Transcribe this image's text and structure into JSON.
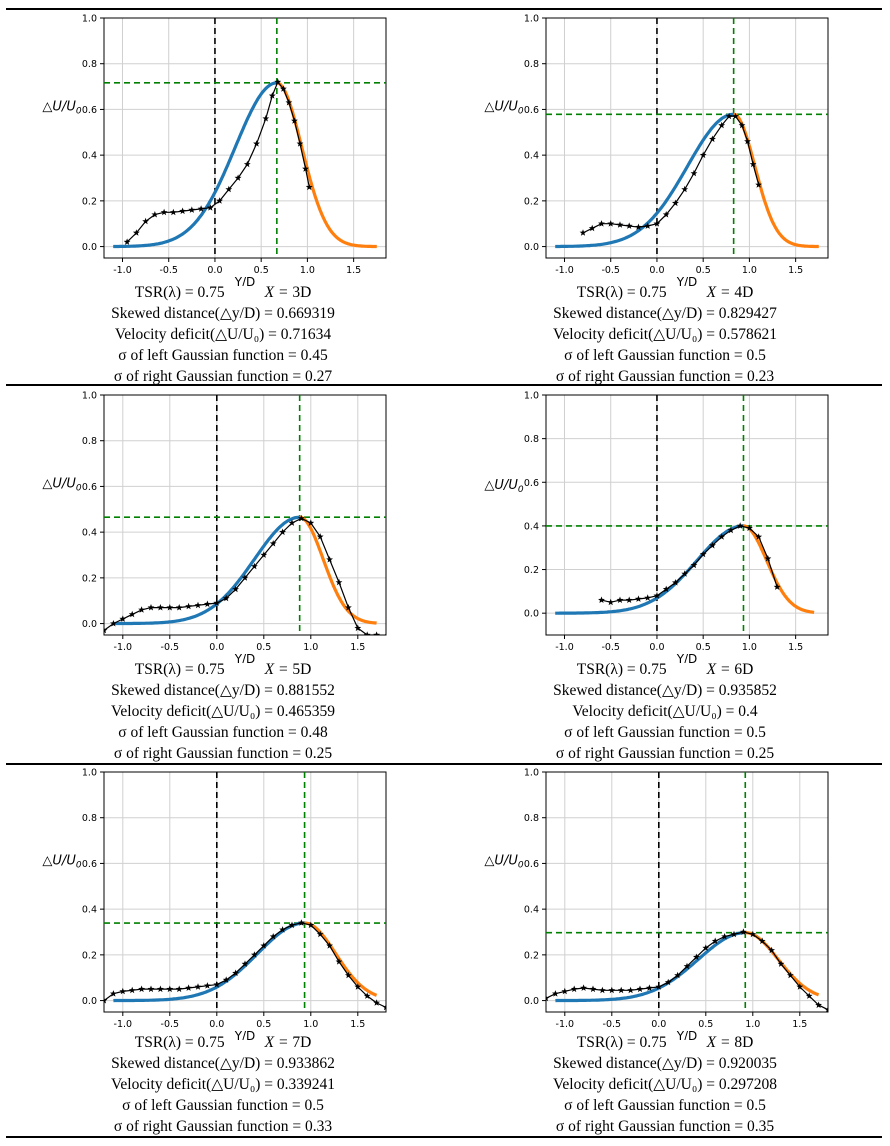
{
  "labels": {
    "xlabel": "Y/D",
    "ylabel_prefix": "△U/U",
    "ylabel_sub": "0",
    "tsr_label": "TSR(λ) = ",
    "x_label": "X = ",
    "skew_label": "Skewed distance(△y/D) = ",
    "deficit_label": "Velocity deficit(△U/U₀) = ",
    "sigma_left_label": "σ of left Gaussian function = ",
    "sigma_right_label": "σ of right Gaussian function = "
  },
  "colors": {
    "blue": "#1f77b4",
    "orange": "#ff7f0e",
    "green": "#008000",
    "black": "#000000",
    "grid": "#d0d0d0"
  },
  "chart_data": [
    {
      "type": "line",
      "id": "x3d",
      "tsr": "0.75",
      "x": "3D",
      "skew": "0.669319",
      "deficit": "0.71634",
      "sigma_left": "0.45",
      "sigma_right": "0.27",
      "mu": 0.669319,
      "amp": 0.71634,
      "sl": 0.45,
      "sr": 0.27,
      "xlim": [
        -1.2,
        1.85
      ],
      "ylim": [
        -0.05,
        1.0
      ],
      "xticks": [
        "-1.0",
        "-0.5",
        "0.0",
        "0.5",
        "1.0",
        "1.5"
      ],
      "yticks": [
        "0.0",
        "0.2",
        "0.4",
        "0.6",
        "0.8",
        "1.0"
      ],
      "fit_range": [
        -1.1,
        1.75
      ],
      "measured": {
        "x": [
          -0.95,
          -0.85,
          -0.75,
          -0.65,
          -0.55,
          -0.45,
          -0.35,
          -0.25,
          -0.15,
          -0.05,
          0.05,
          0.15,
          0.25,
          0.35,
          0.45,
          0.55,
          0.62,
          0.68,
          0.74,
          0.8,
          0.86,
          0.92,
          0.98,
          1.02
        ],
        "y": [
          0.02,
          0.06,
          0.11,
          0.14,
          0.15,
          0.15,
          0.155,
          0.16,
          0.165,
          0.17,
          0.2,
          0.25,
          0.3,
          0.36,
          0.45,
          0.56,
          0.66,
          0.72,
          0.69,
          0.63,
          0.55,
          0.45,
          0.34,
          0.26
        ]
      }
    },
    {
      "type": "line",
      "id": "x4d",
      "tsr": "0.75",
      "x": "4D",
      "skew": "0.829427",
      "deficit": "0.578621",
      "sigma_left": "0.5",
      "sigma_right": "0.23",
      "mu": 0.829427,
      "amp": 0.578621,
      "sl": 0.5,
      "sr": 0.23,
      "xlim": [
        -1.2,
        1.85
      ],
      "ylim": [
        -0.05,
        1.0
      ],
      "xticks": [
        "-1.0",
        "-0.5",
        "0.0",
        "0.5",
        "1.0",
        "1.5"
      ],
      "yticks": [
        "0.0",
        "0.2",
        "0.4",
        "0.6",
        "0.8",
        "1.0"
      ],
      "fit_range": [
        -1.1,
        1.75
      ],
      "measured": {
        "x": [
          -0.8,
          -0.7,
          -0.6,
          -0.5,
          -0.4,
          -0.3,
          -0.2,
          -0.1,
          0.0,
          0.1,
          0.2,
          0.3,
          0.4,
          0.5,
          0.6,
          0.7,
          0.78,
          0.85,
          0.92,
          0.98,
          1.04,
          1.1
        ],
        "y": [
          0.06,
          0.08,
          0.1,
          0.1,
          0.095,
          0.09,
          0.085,
          0.09,
          0.1,
          0.14,
          0.19,
          0.25,
          0.32,
          0.4,
          0.47,
          0.53,
          0.57,
          0.57,
          0.53,
          0.46,
          0.36,
          0.27
        ]
      }
    },
    {
      "type": "line",
      "id": "x5d",
      "tsr": "0.75",
      "x": "5D",
      "skew": "0.881552",
      "deficit": "0.465359",
      "sigma_left": "0.48",
      "sigma_right": "0.25",
      "mu": 0.881552,
      "amp": 0.465359,
      "sl": 0.48,
      "sr": 0.25,
      "xlim": [
        -1.2,
        1.8
      ],
      "ylim": [
        -0.05,
        1.0
      ],
      "xticks": [
        "-1.0",
        "-0.5",
        "0.0",
        "0.5",
        "1.0",
        "1.5"
      ],
      "yticks": [
        "0.0",
        "0.2",
        "0.4",
        "0.6",
        "0.8",
        "1.0"
      ],
      "fit_range": [
        -1.1,
        1.7
      ],
      "measured": {
        "x": [
          -1.2,
          -1.1,
          -1.0,
          -0.9,
          -0.8,
          -0.7,
          -0.6,
          -0.5,
          -0.4,
          -0.3,
          -0.2,
          -0.1,
          0.0,
          0.1,
          0.2,
          0.3,
          0.4,
          0.5,
          0.6,
          0.7,
          0.8,
          0.9,
          1.0,
          1.1,
          1.2,
          1.3,
          1.4,
          1.5,
          1.6,
          1.7,
          1.8
        ],
        "y": [
          -0.03,
          0.0,
          0.02,
          0.04,
          0.06,
          0.07,
          0.07,
          0.07,
          0.07,
          0.075,
          0.08,
          0.085,
          0.09,
          0.11,
          0.15,
          0.2,
          0.25,
          0.3,
          0.35,
          0.4,
          0.44,
          0.46,
          0.44,
          0.38,
          0.28,
          0.18,
          0.07,
          -0.02,
          -0.05,
          -0.05,
          -0.055
        ]
      }
    },
    {
      "type": "line",
      "id": "x6d",
      "tsr": "0.75",
      "x": "6D",
      "skew": "0.935852",
      "deficit": "0.4",
      "sigma_left": "0.5",
      "sigma_right": "0.25",
      "mu": 0.935852,
      "amp": 0.4,
      "sl": 0.5,
      "sr": 0.25,
      "xlim": [
        -1.2,
        1.85
      ],
      "ylim": [
        -0.1,
        1.0
      ],
      "xticks": [
        "-1.0",
        "-0.5",
        "0.0",
        "0.5",
        "1.0",
        "1.5"
      ],
      "yticks": [
        "0.0",
        "0.2",
        "0.4",
        "0.6",
        "0.8",
        "1.0"
      ],
      "fit_range": [
        -1.1,
        1.7
      ],
      "measured": {
        "x": [
          -0.6,
          -0.5,
          -0.4,
          -0.3,
          -0.2,
          -0.1,
          0.0,
          0.1,
          0.2,
          0.3,
          0.4,
          0.5,
          0.6,
          0.7,
          0.8,
          0.9,
          1.0,
          1.1,
          1.2,
          1.3
        ],
        "y": [
          0.06,
          0.05,
          0.06,
          0.06,
          0.065,
          0.07,
          0.08,
          0.11,
          0.14,
          0.18,
          0.22,
          0.27,
          0.31,
          0.35,
          0.38,
          0.4,
          0.39,
          0.35,
          0.25,
          0.12
        ]
      }
    },
    {
      "type": "line",
      "id": "x7d",
      "tsr": "0.75",
      "x": "7D",
      "skew": "0.933862",
      "deficit": "0.339241",
      "sigma_left": "0.5",
      "sigma_right": "0.33",
      "mu": 0.933862,
      "amp": 0.339241,
      "sl": 0.5,
      "sr": 0.33,
      "xlim": [
        -1.2,
        1.8
      ],
      "ylim": [
        -0.05,
        1.0
      ],
      "xticks": [
        "-1.0",
        "-0.5",
        "0.0",
        "0.5",
        "1.0",
        "1.5"
      ],
      "yticks": [
        "0.0",
        "0.2",
        "0.4",
        "0.6",
        "0.8",
        "1.0"
      ],
      "fit_range": [
        -1.1,
        1.7
      ],
      "measured": {
        "x": [
          -1.2,
          -1.1,
          -1.0,
          -0.9,
          -0.8,
          -0.7,
          -0.6,
          -0.5,
          -0.4,
          -0.3,
          -0.2,
          -0.1,
          0.0,
          0.1,
          0.2,
          0.3,
          0.4,
          0.5,
          0.6,
          0.7,
          0.8,
          0.9,
          1.0,
          1.1,
          1.2,
          1.3,
          1.4,
          1.5,
          1.6,
          1.7,
          1.8
        ],
        "y": [
          0.0,
          0.03,
          0.04,
          0.045,
          0.05,
          0.05,
          0.05,
          0.05,
          0.05,
          0.055,
          0.06,
          0.065,
          0.07,
          0.09,
          0.12,
          0.16,
          0.2,
          0.24,
          0.28,
          0.31,
          0.33,
          0.34,
          0.33,
          0.29,
          0.24,
          0.17,
          0.11,
          0.06,
          0.02,
          -0.01,
          -0.03
        ]
      }
    },
    {
      "type": "line",
      "id": "x8d",
      "tsr": "0.75",
      "x": "8D",
      "skew": "0.920035",
      "deficit": "0.297208",
      "sigma_left": "0.5",
      "sigma_right": "0.35",
      "mu": 0.920035,
      "amp": 0.297208,
      "sl": 0.5,
      "sr": 0.35,
      "xlim": [
        -1.2,
        1.8
      ],
      "ylim": [
        -0.05,
        1.0
      ],
      "xticks": [
        "-1.0",
        "-0.5",
        "0.0",
        "0.5",
        "1.0",
        "1.5"
      ],
      "yticks": [
        "0.0",
        "0.2",
        "0.4",
        "0.6",
        "0.8",
        "1.0"
      ],
      "fit_range": [
        -1.1,
        1.7
      ],
      "measured": {
        "x": [
          -1.2,
          -1.1,
          -1.0,
          -0.9,
          -0.8,
          -0.7,
          -0.6,
          -0.5,
          -0.4,
          -0.3,
          -0.2,
          -0.1,
          0.0,
          0.1,
          0.2,
          0.3,
          0.4,
          0.5,
          0.6,
          0.7,
          0.8,
          0.9,
          1.0,
          1.1,
          1.2,
          1.3,
          1.4,
          1.5,
          1.6,
          1.7,
          1.8
        ],
        "y": [
          0.01,
          0.03,
          0.04,
          0.05,
          0.055,
          0.05,
          0.045,
          0.045,
          0.045,
          0.045,
          0.05,
          0.055,
          0.06,
          0.08,
          0.11,
          0.15,
          0.19,
          0.23,
          0.26,
          0.28,
          0.29,
          0.3,
          0.29,
          0.26,
          0.22,
          0.16,
          0.11,
          0.06,
          0.02,
          -0.02,
          -0.04
        ]
      }
    }
  ]
}
